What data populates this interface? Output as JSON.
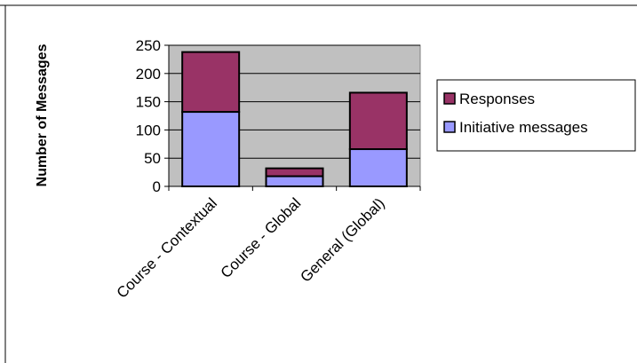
{
  "chart_data": {
    "type": "bar",
    "stacked": true,
    "categories": [
      "Course - Contextual",
      "Course - Global",
      "General (Global)"
    ],
    "series": [
      {
        "name": "Initiative messages",
        "values": [
          132,
          18,
          66
        ]
      },
      {
        "name": "Responses",
        "values": [
          106,
          14,
          100
        ]
      }
    ],
    "xlabel": "",
    "ylabel": "Number of Messages",
    "ylim": [
      0,
      250
    ],
    "yticks": [
      0,
      50,
      100,
      150,
      200,
      250
    ],
    "grid": true,
    "legend": "right",
    "colors": {
      "plot_background": "#c0c0c0",
      "gridline": "#000000",
      "Initiative messages": "#9999ff",
      "Responses": "#993366",
      "border": "#000000"
    }
  }
}
